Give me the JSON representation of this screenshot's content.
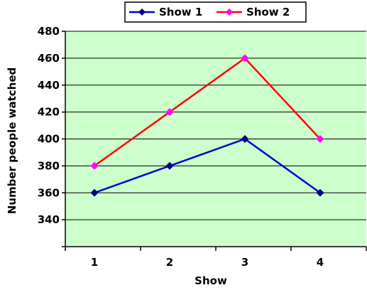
{
  "chart_data": {
    "type": "line",
    "xlabel": "Show",
    "ylabel": "Number people watched",
    "x": [
      1,
      2,
      3,
      4
    ],
    "x_tick_labels": [
      "1",
      "2",
      "3",
      "4"
    ],
    "ylim": [
      320,
      480
    ],
    "y_ticks": [
      340,
      360,
      380,
      400,
      420,
      440,
      460,
      480
    ],
    "y_tick_labels": [
      "340",
      "360",
      "380",
      "400",
      "420",
      "440",
      "460",
      "480"
    ],
    "grid": true,
    "legend": "top",
    "background_color": "#ccffcc",
    "series": [
      {
        "name": "Show 1",
        "values": [
          360,
          380,
          400,
          360
        ],
        "line_color": "#0000cc",
        "marker_color": "#000080",
        "marker": "diamond"
      },
      {
        "name": "Show 2",
        "values": [
          380,
          420,
          460,
          400
        ],
        "line_color": "#ff0000",
        "marker_color": "#ff00ff",
        "marker": "diamond"
      }
    ]
  }
}
